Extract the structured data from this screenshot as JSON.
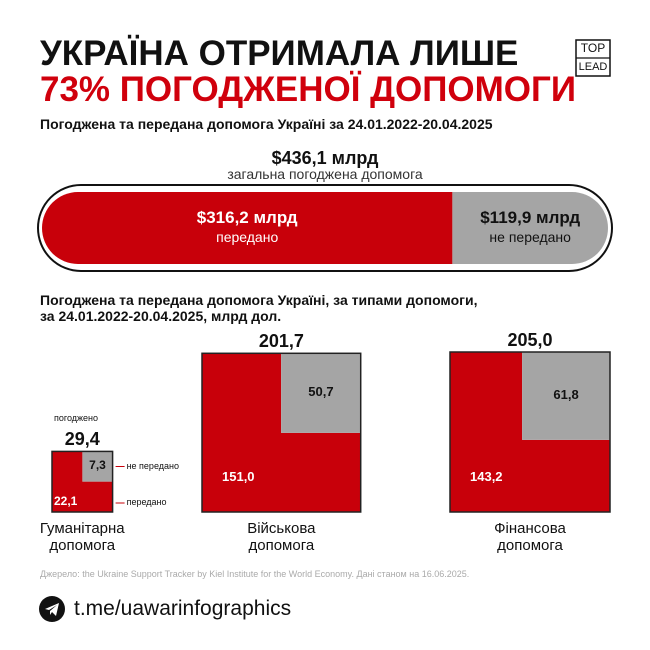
{
  "header": {
    "title_line1": "УКРАЇНА ОТРИМАЛА ЛИШЕ",
    "title_line2": "73% ПОГОДЖЕНОЇ ДОПОМОГИ",
    "logo_top": "TOP",
    "logo_bottom": "LEAD"
  },
  "chart_data": [
    {
      "type": "stacked-bar",
      "title": "Погоджена та передана допомога Україні за 24.01.2022-20.04.2025",
      "total": 436.1,
      "total_label": "$436,1 млрд",
      "total_caption": "загальна погоджена допомога",
      "series": [
        {
          "name": "передано",
          "color": "#c8000a",
          "values": [
            316.2
          ],
          "value_labels": [
            "$316,2 млрд"
          ]
        },
        {
          "name": "не передано",
          "color": "#a5a5a5",
          "values": [
            119.9
          ],
          "value_labels": [
            "$119,9 млрд"
          ]
        }
      ]
    },
    {
      "type": "nested-square",
      "title": "Погоджена та передана допомога Україні, за типами допомоги,\nза 24.01.2022-20.04.2025, млрд дол.",
      "categories": [
        "Гуманітарна допомога",
        "Військова допомога",
        "Фінансова допомога"
      ],
      "totals": {
        "name": "погоджено",
        "values": [
          29.4,
          201.7,
          205.0
        ],
        "value_labels": [
          "29,4",
          "201,7",
          "205,0"
        ]
      },
      "series": [
        {
          "name": "передано",
          "color": "#c8000a",
          "values": [
            22.1,
            151.0,
            143.2
          ],
          "value_labels": [
            "22,1",
            "151,0",
            "143,2"
          ]
        },
        {
          "name": "не передано",
          "color": "#a5a5a5",
          "values": [
            7.3,
            50.7,
            61.8
          ],
          "value_labels": [
            "7,3",
            "50,7",
            "61,8"
          ]
        }
      ]
    }
  ],
  "footer": {
    "source": "Джерело: the Ukraine Support Tracker by Kiel Institute for the World Economy. Дані станом на 16.06.2025.",
    "link": "t.me/uawarinfographics"
  }
}
